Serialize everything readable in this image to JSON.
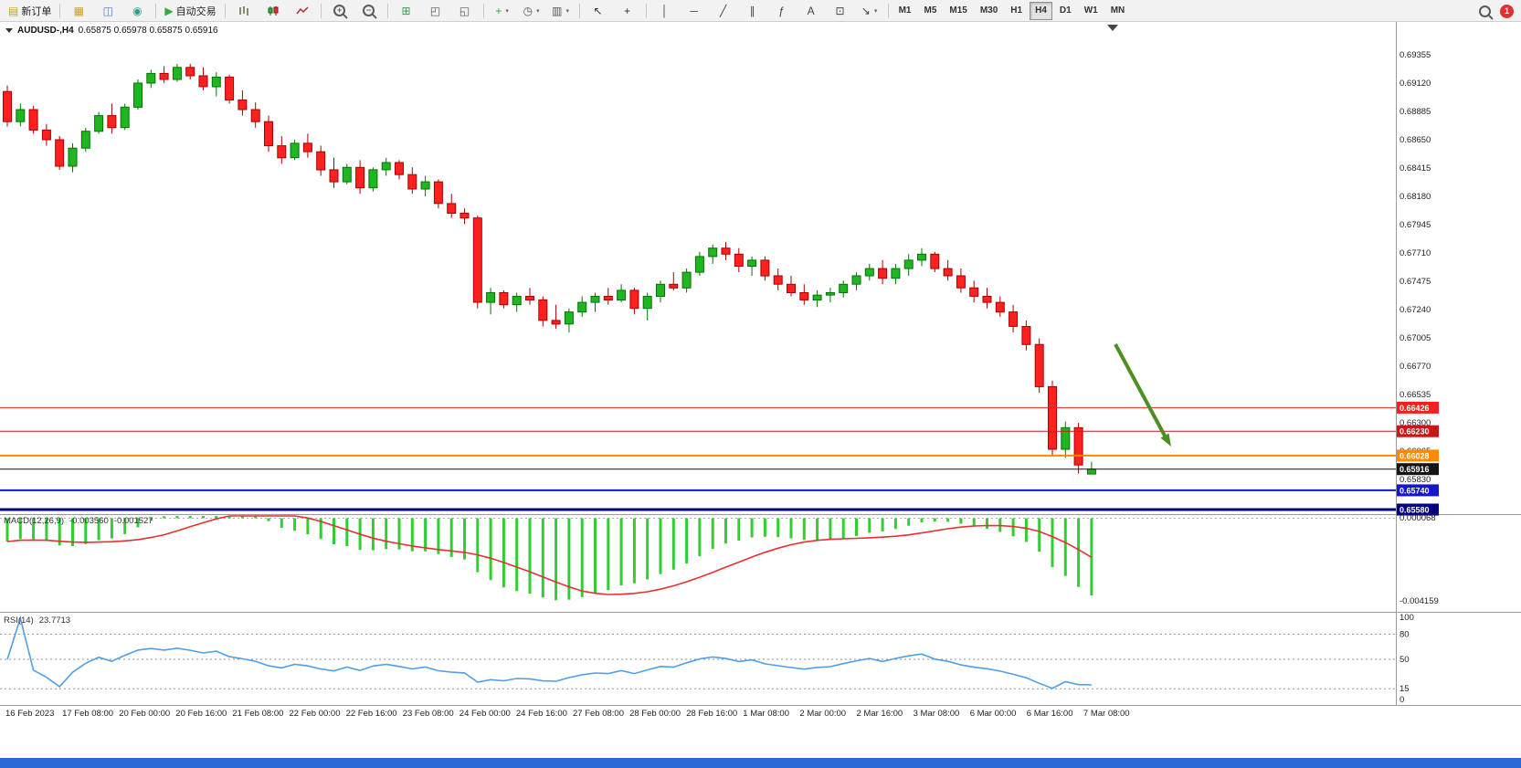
{
  "toolbar": {
    "groups": [
      {
        "name": "trade",
        "items": [
          {
            "name": "new-order-button",
            "label": "新订单",
            "glyph": "▤",
            "glyph_color": "#c9a227"
          }
        ]
      },
      {
        "name": "panels",
        "items": [
          {
            "name": "charts-profile-button",
            "glyph": "▦",
            "glyph_color": "#c9a227"
          },
          {
            "name": "market-watch-button",
            "glyph": "◫",
            "glyph_color": "#4a7ebb"
          },
          {
            "name": "navigator-button",
            "glyph": "◉",
            "glyph_color": "#2f9d8f"
          }
        ]
      },
      {
        "name": "autotrade",
        "items": [
          {
            "name": "autotrading-button",
            "label": "自动交易",
            "glyph": "▶",
            "glyph_color": "#2fae3f"
          }
        ]
      },
      {
        "name": "chart-types",
        "items": [
          {
            "name": "bar-chart-button",
            "icon": "bars"
          },
          {
            "name": "candlestick-chart-button",
            "icon": "candles"
          },
          {
            "name": "line-chart-button",
            "icon": "line"
          }
        ]
      },
      {
        "name": "zoom",
        "items": [
          {
            "name": "zoom-in-button",
            "icon": "zoom-in"
          },
          {
            "name": "zoom-out-button",
            "icon": "zoom-out"
          }
        ]
      },
      {
        "name": "windows",
        "items": [
          {
            "name": "tile-windows-button",
            "glyph": "⊞",
            "glyph_color": "#3a9d4a"
          },
          {
            "name": "cascade-windows-button",
            "glyph": "◰",
            "glyph_color": "#555555"
          },
          {
            "name": "tile-vertical-button",
            "glyph": "◱",
            "glyph_color": "#555555"
          }
        ]
      },
      {
        "name": "insert",
        "items": [
          {
            "name": "indicators-button",
            "glyph": "+",
            "glyph_color": "#2fae3f",
            "dropdown": true
          },
          {
            "name": "periods-button",
            "glyph": "◷",
            "glyph_color": "#555555",
            "dropdown": true
          },
          {
            "name": "templates-button",
            "glyph": "▥",
            "glyph_color": "#555555",
            "dropdown": true
          }
        ]
      },
      {
        "name": "cursor",
        "items": [
          {
            "name": "cursor-button",
            "glyph": "↖",
            "glyph_color": "#333333"
          },
          {
            "name": "crosshair-button",
            "glyph": "+",
            "glyph_color": "#333333"
          }
        ]
      },
      {
        "name": "draw",
        "items": [
          {
            "name": "vertical-line-button",
            "glyph": "│",
            "glyph_color": "#444444"
          },
          {
            "name": "horizontal-line-button",
            "glyph": "─",
            "glyph_color": "#444444"
          },
          {
            "name": "trendline-button",
            "glyph": "╱",
            "glyph_color": "#444444"
          },
          {
            "name": "channel-button",
            "glyph": "∥",
            "glyph_color": "#444444"
          },
          {
            "name": "fibonacci-button",
            "glyph": "ƒ",
            "glyph_color": "#444444"
          },
          {
            "name": "text-button",
            "glyph": "A",
            "glyph_color": "#444444"
          },
          {
            "name": "text-label-button",
            "glyph": "⊡",
            "glyph_color": "#444444"
          },
          {
            "name": "arrows-button",
            "glyph": "↘",
            "glyph_color": "#444444",
            "dropdown": true
          }
        ]
      },
      {
        "name": "timeframes",
        "items": [
          {
            "name": "timeframe-m1-button",
            "label": "M1"
          },
          {
            "name": "timeframe-m5-button",
            "label": "M5"
          },
          {
            "name": "timeframe-m15-button",
            "label": "M15"
          },
          {
            "name": "timeframe-m30-button",
            "label": "M30"
          },
          {
            "name": "timeframe-h1-button",
            "label": "H1"
          },
          {
            "name": "timeframe-h4-button",
            "label": "H4",
            "active": true
          },
          {
            "name": "timeframe-d1-button",
            "label": "D1"
          },
          {
            "name": "timeframe-w1-button",
            "label": "W1"
          },
          {
            "name": "timeframe-mn-button",
            "label": "MN"
          }
        ]
      }
    ],
    "notification_count": "1"
  },
  "chart": {
    "symbol_period": "AUDUSD-,H4",
    "ohlc": "0.65875 0.65978 0.65875 0.65916",
    "price_axis_labels": [
      "0.69355",
      "0.69120",
      "0.68885",
      "0.68650",
      "0.68415",
      "0.68180",
      "0.67945",
      "0.67710",
      "0.67475",
      "0.67240",
      "0.67005",
      "0.66770",
      "0.66535",
      "0.66300",
      "0.66065",
      "0.65830"
    ],
    "levels": [
      {
        "price": "0.66426",
        "color": "#f22020",
        "width": 1,
        "role": "resistance"
      },
      {
        "price": "0.66230",
        "color": "#cc1616",
        "width": 1,
        "role": "resistance"
      },
      {
        "price": "0.66028",
        "color": "#ff8a00",
        "width": 2,
        "role": "support"
      },
      {
        "price": "0.65916",
        "color": "#151515",
        "width": 1,
        "role": "current-price"
      },
      {
        "price": "0.65740",
        "color": "#1616cc",
        "width": 2,
        "role": "support"
      },
      {
        "price": "0.65580",
        "color": "#000080",
        "width": 3,
        "role": "support"
      }
    ],
    "annotation": {
      "type": "arrow",
      "color": "#4e8f22",
      "direction": "down-right"
    },
    "up_color": "#1fb622",
    "up_border": "#067306",
    "down_color": "#ff2020",
    "down_border": "#a80000"
  },
  "macd": {
    "label": "MACD(12,26,9)",
    "value_main": "-0.003560",
    "value_signal": "-0.001527",
    "axis_labels": [
      "0.000068",
      "-0.004159"
    ],
    "histogram_color": "#32cd32",
    "signal_color": "#e83030"
  },
  "rsi": {
    "label": "RSI(14)",
    "value": "23.7713",
    "axis_labels": [
      "100",
      "80",
      "50",
      "15",
      "0"
    ],
    "levels": [
      80,
      50,
      15
    ],
    "line_color": "#4f9fe8"
  },
  "time_axis": {
    "labels": [
      "16 Feb 2023",
      "17 Feb 08:00",
      "20 Feb 00:00",
      "20 Feb 16:00",
      "21 Feb 08:00",
      "22 Feb 00:00",
      "22 Feb 16:00",
      "23 Feb 08:00",
      "24 Feb 00:00",
      "24 Feb 16:00",
      "27 Feb 08:00",
      "28 Feb 00:00",
      "28 Feb 16:00",
      "1 Mar 08:00",
      "2 Mar 00:00",
      "2 Mar 16:00",
      "3 Mar 08:00",
      "6 Mar 00:00",
      "6 Mar 16:00",
      "7 Mar 08:00"
    ]
  },
  "status_bar": {
    "color": "#2a6ad4"
  },
  "chart_data": {
    "type": "candlestick",
    "symbol": "AUDUSD",
    "timeframe": "H4",
    "ohlc_current": {
      "open": 0.65875,
      "high": 0.65978,
      "low": 0.65875,
      "close": 0.65916
    },
    "candles": [
      [
        0.6905,
        0.691,
        0.6876,
        0.688
      ],
      [
        0.688,
        0.6895,
        0.6876,
        0.689
      ],
      [
        0.689,
        0.6893,
        0.687,
        0.6873
      ],
      [
        0.6873,
        0.6878,
        0.686,
        0.6865
      ],
      [
        0.6865,
        0.6868,
        0.684,
        0.6843
      ],
      [
        0.6843,
        0.6862,
        0.6838,
        0.6858
      ],
      [
        0.6858,
        0.6875,
        0.6855,
        0.6872
      ],
      [
        0.6872,
        0.6888,
        0.687,
        0.6885
      ],
      [
        0.6885,
        0.6895,
        0.687,
        0.6875
      ],
      [
        0.6875,
        0.6895,
        0.6873,
        0.6892
      ],
      [
        0.6892,
        0.6915,
        0.689,
        0.6912
      ],
      [
        0.6912,
        0.6923,
        0.6908,
        0.692
      ],
      [
        0.692,
        0.6926,
        0.6912,
        0.6915
      ],
      [
        0.6915,
        0.6928,
        0.6913,
        0.6925
      ],
      [
        0.6925,
        0.6928,
        0.6915,
        0.6918
      ],
      [
        0.6918,
        0.6925,
        0.6906,
        0.6909
      ],
      [
        0.6909,
        0.6921,
        0.6901,
        0.6917
      ],
      [
        0.6917,
        0.6919,
        0.6895,
        0.6898
      ],
      [
        0.6898,
        0.6906,
        0.6885,
        0.689
      ],
      [
        0.689,
        0.6896,
        0.6875,
        0.688
      ],
      [
        0.688,
        0.6885,
        0.6855,
        0.686
      ],
      [
        0.686,
        0.6868,
        0.6845,
        0.685
      ],
      [
        0.685,
        0.6865,
        0.6848,
        0.6862
      ],
      [
        0.6862,
        0.687,
        0.685,
        0.6855
      ],
      [
        0.6855,
        0.686,
        0.6835,
        0.684
      ],
      [
        0.684,
        0.685,
        0.6825,
        0.683
      ],
      [
        0.683,
        0.6845,
        0.6828,
        0.6842
      ],
      [
        0.6842,
        0.6848,
        0.682,
        0.6825
      ],
      [
        0.6825,
        0.6842,
        0.6822,
        0.684
      ],
      [
        0.684,
        0.685,
        0.6835,
        0.6846
      ],
      [
        0.6846,
        0.6848,
        0.6832,
        0.6836
      ],
      [
        0.6836,
        0.6842,
        0.682,
        0.6824
      ],
      [
        0.6824,
        0.6835,
        0.6818,
        0.683
      ],
      [
        0.683,
        0.6832,
        0.6808,
        0.6812
      ],
      [
        0.6812,
        0.682,
        0.68,
        0.6804
      ],
      [
        0.6804,
        0.6808,
        0.6795,
        0.68
      ],
      [
        0.68,
        0.6802,
        0.6725,
        0.673
      ],
      [
        0.673,
        0.6742,
        0.672,
        0.6738
      ],
      [
        0.6738,
        0.674,
        0.6725,
        0.6728
      ],
      [
        0.6728,
        0.6738,
        0.6722,
        0.6735
      ],
      [
        0.6735,
        0.6742,
        0.6728,
        0.6732
      ],
      [
        0.6732,
        0.6735,
        0.671,
        0.6715
      ],
      [
        0.6715,
        0.6728,
        0.6708,
        0.6712
      ],
      [
        0.6712,
        0.6725,
        0.6705,
        0.6722
      ],
      [
        0.6722,
        0.6735,
        0.6718,
        0.673
      ],
      [
        0.673,
        0.6738,
        0.6722,
        0.6735
      ],
      [
        0.6735,
        0.6742,
        0.6728,
        0.6732
      ],
      [
        0.6732,
        0.6745,
        0.673,
        0.674
      ],
      [
        0.674,
        0.6742,
        0.672,
        0.6725
      ],
      [
        0.6725,
        0.6738,
        0.6715,
        0.6735
      ],
      [
        0.6735,
        0.6748,
        0.673,
        0.6745
      ],
      [
        0.6745,
        0.6755,
        0.674,
        0.6742
      ],
      [
        0.6742,
        0.6758,
        0.6738,
        0.6755
      ],
      [
        0.6755,
        0.6772,
        0.6752,
        0.6768
      ],
      [
        0.6768,
        0.6778,
        0.6762,
        0.6775
      ],
      [
        0.6775,
        0.678,
        0.6765,
        0.677
      ],
      [
        0.677,
        0.6775,
        0.6755,
        0.676
      ],
      [
        0.676,
        0.6768,
        0.6752,
        0.6765
      ],
      [
        0.6765,
        0.6768,
        0.6748,
        0.6752
      ],
      [
        0.6752,
        0.6758,
        0.674,
        0.6745
      ],
      [
        0.6745,
        0.6752,
        0.6735,
        0.6738
      ],
      [
        0.6738,
        0.6745,
        0.6728,
        0.6732
      ],
      [
        0.6732,
        0.674,
        0.6726,
        0.6736
      ],
      [
        0.6736,
        0.6742,
        0.673,
        0.6738
      ],
      [
        0.6738,
        0.6748,
        0.6734,
        0.6745
      ],
      [
        0.6745,
        0.6755,
        0.674,
        0.6752
      ],
      [
        0.6752,
        0.6762,
        0.6748,
        0.6758
      ],
      [
        0.6758,
        0.6765,
        0.6745,
        0.675
      ],
      [
        0.675,
        0.6762,
        0.6745,
        0.6758
      ],
      [
        0.6758,
        0.677,
        0.6752,
        0.6765
      ],
      [
        0.6765,
        0.6775,
        0.676,
        0.677
      ],
      [
        0.677,
        0.6772,
        0.6755,
        0.6758
      ],
      [
        0.6758,
        0.6765,
        0.6748,
        0.6752
      ],
      [
        0.6752,
        0.6758,
        0.6738,
        0.6742
      ],
      [
        0.6742,
        0.6748,
        0.673,
        0.6735
      ],
      [
        0.6735,
        0.6742,
        0.6725,
        0.673
      ],
      [
        0.673,
        0.6735,
        0.6718,
        0.6722
      ],
      [
        0.6722,
        0.6728,
        0.6705,
        0.671
      ],
      [
        0.671,
        0.6715,
        0.669,
        0.6695
      ],
      [
        0.6695,
        0.67,
        0.6655,
        0.666
      ],
      [
        0.666,
        0.6665,
        0.6602,
        0.6608
      ],
      [
        0.6608,
        0.6631,
        0.6601,
        0.6626
      ],
      [
        0.6626,
        0.663,
        0.6588,
        0.6595
      ],
      [
        0.65875,
        0.65978,
        0.65875,
        0.65916
      ]
    ]
  }
}
